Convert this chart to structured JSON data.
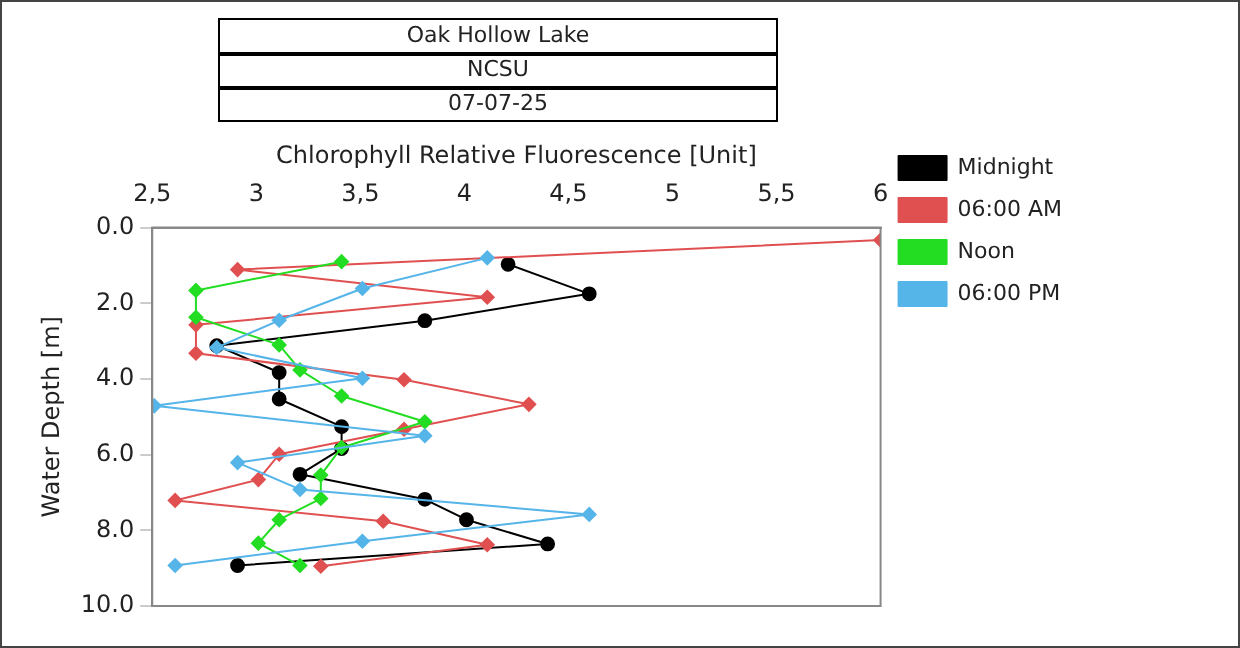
{
  "chart_data": {
    "type": "line",
    "title": "Oak Hollow Lake",
    "subtitle": "NCSU",
    "annotations": [
      "07-07-25"
    ],
    "xlabel": "Chlorophyll Relative Fluorescence [Unit]",
    "ylabel": "Water Depth [m]",
    "xlim": [
      2.5,
      6
    ],
    "xticks": [
      {
        "value": 2.5,
        "label": "2,5"
      },
      3,
      {
        "value": 3.5,
        "label": "3,5"
      },
      4,
      {
        "value": 4.5,
        "label": "4,5"
      },
      5,
      {
        "value": 5.5,
        "label": "5,5"
      },
      6
    ],
    "ylim": [
      10,
      0
    ],
    "yticks": [
      {
        "value": 0,
        "label": "0.0"
      },
      {
        "value": 2,
        "label": "2.0"
      },
      {
        "value": 4,
        "label": "4.0"
      },
      {
        "value": 6,
        "label": "6.0"
      },
      {
        "value": 8,
        "label": "8.0"
      },
      {
        "value": 10,
        "label": "10.0"
      }
    ],
    "grid": false,
    "legend": "top right",
    "series": [
      {
        "name": "Midnight",
        "color": "#000000",
        "marker": "circle",
        "x": [
          4.21,
          4.6,
          3.81,
          2.81,
          3.11,
          3.11,
          3.41,
          3.41,
          3.21,
          3.81,
          4.01,
          4.4,
          2.91
        ],
        "values": [
          0.97,
          1.75,
          2.46,
          3.12,
          3.83,
          4.53,
          5.26,
          5.84,
          6.52,
          7.18,
          7.72,
          8.36,
          8.93
        ]
      },
      {
        "name": "06:00 AM",
        "color": "#e05050",
        "marker": "diamond",
        "x": [
          6.0,
          2.91,
          4.11,
          2.71,
          2.71,
          3.71,
          4.31,
          3.71,
          3.11,
          3.01,
          2.61,
          3.61,
          4.11,
          3.31
        ],
        "values": [
          0.33,
          1.11,
          1.84,
          2.57,
          3.32,
          4.02,
          4.67,
          5.33,
          5.99,
          6.66,
          7.21,
          7.76,
          8.38,
          8.95
        ]
      },
      {
        "name": "Noon",
        "color": "#22dd22",
        "marker": "diamond",
        "x": [
          3.41,
          2.71,
          2.71,
          3.11,
          3.21,
          3.41,
          3.81,
          3.41,
          3.31,
          3.31,
          3.11,
          3.01,
          3.21
        ],
        "values": [
          0.9,
          1.66,
          2.37,
          3.1,
          3.76,
          4.45,
          5.13,
          5.81,
          6.54,
          7.16,
          7.72,
          8.34,
          8.93
        ]
      },
      {
        "name": "06:00 PM",
        "color": "#55b4e8",
        "marker": "diamond",
        "x": [
          4.11,
          3.51,
          3.11,
          2.81,
          3.51,
          2.51,
          3.81,
          2.91,
          3.21,
          4.6,
          3.51,
          2.61
        ],
        "values": [
          0.8,
          1.61,
          2.45,
          3.17,
          3.98,
          4.71,
          5.5,
          6.21,
          6.92,
          7.58,
          8.29,
          8.93
        ]
      }
    ]
  }
}
